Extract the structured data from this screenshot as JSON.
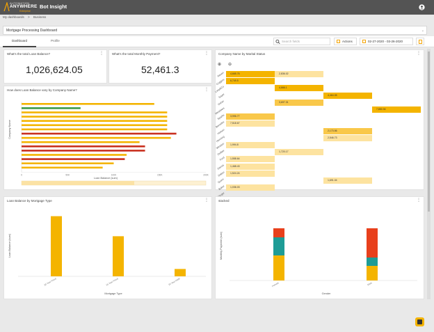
{
  "header": {
    "logo_line1": "AUTOMATION",
    "logo_line2": "ANYWHERE",
    "logo_line3": "Enterprise",
    "app_title": "Bot Insight"
  },
  "breadcrumb": [
    "My dashboards",
    ">",
    "Business"
  ],
  "dashboard_select": {
    "value": "Mortgage Processing Dashboard"
  },
  "tabs": [
    {
      "label": "Dashboard",
      "active": true
    },
    {
      "label": "Profile",
      "active": false
    }
  ],
  "toolbar": {
    "search_placeholder": "Search fields",
    "actions_label": "Actions",
    "date_range": "02-27-2020 - 03-26-2020"
  },
  "kpis": [
    {
      "title": "What's the total Loan Balance?",
      "value": "1,026,624.05"
    },
    {
      "title": "What's the total Monthly Payment?",
      "value": "52,461.3"
    }
  ],
  "heatmap": {
    "title": "Company Name by Marital Status",
    "rows": [
      "Nauen",
      "Coggins",
      "Lasy&Co",
      "Sayer",
      "Osher",
      "Meadows",
      "Sparks",
      "Benedict",
      "Hutson",
      "Henning",
      "Winston",
      "Outlaw",
      "Ford",
      "Garcia",
      "Dalton",
      "Quinn",
      "Baker",
      "Singer",
      "Moody",
      "Fox"
    ],
    "cells": [
      {
        "row": 0,
        "col": 0,
        "text": "4,665.76",
        "color": "#f4b400"
      },
      {
        "row": 0,
        "col": 1,
        "text": "2,836.02",
        "color": "#fde3a0"
      },
      {
        "row": 1,
        "col": 0,
        "text": "6,749.5",
        "color": "#f4b400"
      },
      {
        "row": 2,
        "col": 1,
        "text": "4,666.1",
        "color": "#f4b400"
      },
      {
        "row": 3,
        "col": 2,
        "text": "4,464.05",
        "color": "#f4b400"
      },
      {
        "row": 4,
        "col": 1,
        "text": "3,697.31",
        "color": "#f9c84a"
      },
      {
        "row": 5,
        "col": 3,
        "text": "7,850.94",
        "color": "#f4b400"
      },
      {
        "row": 6,
        "col": 0,
        "text": "3,996.77",
        "color": "#f9c84a"
      },
      {
        "row": 7,
        "col": 0,
        "text": "7,518.67",
        "color": "#fde3a0"
      },
      {
        "row": 8,
        "col": 2,
        "text": "2,173.56",
        "color": "#f9c84a"
      },
      {
        "row": 9,
        "col": 2,
        "text": "2,546.73",
        "color": "#fde3a0"
      },
      {
        "row": 10,
        "col": 0,
        "text": "1,994.8",
        "color": "#fde3a0"
      },
      {
        "row": 11,
        "col": 1,
        "text": "1,720.17",
        "color": "#fde3a0"
      },
      {
        "row": 12,
        "col": 0,
        "text": "1,558.64",
        "color": "#fde3a0"
      },
      {
        "row": 13,
        "col": 0,
        "text": "1,468.43",
        "color": "#fde3a0"
      },
      {
        "row": 14,
        "col": 0,
        "text": "1,524.24",
        "color": "#fde3a0"
      },
      {
        "row": 15,
        "col": 2,
        "text": "1,691.04",
        "color": "#fde3a0"
      },
      {
        "row": 16,
        "col": 0,
        "text": "1,036.03",
        "color": "#fde3a0"
      }
    ],
    "zoom_in": "⊕",
    "zoom_out": "⊖"
  },
  "hbar": {
    "title": "How does Loan Balance vary by Company Name?",
    "ylabel": "Company Name",
    "xlabel": "Loan Balance (sum)",
    "ticks": [
      "0",
      "50K",
      "100K",
      "150K",
      "200K"
    ],
    "bars": [
      {
        "w": 0.72,
        "c": "#f4b400"
      },
      {
        "w": 0.32,
        "c": "#3a9a48"
      },
      {
        "w": 0.79,
        "c": "#f4b400"
      },
      {
        "w": 0.79,
        "c": "#f4b400"
      },
      {
        "w": 0.79,
        "c": "#f4b400"
      },
      {
        "w": 0.79,
        "c": "#f4b400"
      },
      {
        "w": 0.79,
        "c": "#f4b400"
      },
      {
        "w": 0.84,
        "c": "#c9301e"
      },
      {
        "w": 0.81,
        "c": "#f4b400"
      },
      {
        "w": 0.64,
        "c": "#f4b400"
      },
      {
        "w": 0.67,
        "c": "#c9301e"
      },
      {
        "w": 0.67,
        "c": "#c9301e"
      },
      {
        "w": 0.57,
        "c": "#f4b400"
      },
      {
        "w": 0.56,
        "c": "#c9301e"
      },
      {
        "w": 0.5,
        "c": "#f4b400"
      },
      {
        "w": 0.44,
        "c": "#f4b400"
      }
    ]
  },
  "mortgage": {
    "title": "Loan Balance by Mortgage Type",
    "ylabel": "Loan Balance (sum)",
    "xlabel": "Mortgage Type",
    "categories": [
      "30 Year Fixed",
      "15 Year Fixed",
      "10 Year ARM"
    ],
    "values": [
      0.9,
      0.6,
      0.11
    ]
  },
  "stacked": {
    "title": "stacked",
    "ylabel": "Monthly Payment (sum)",
    "xlabel": "Gender",
    "categories": [
      "Female",
      "Male"
    ],
    "segments": [
      [
        {
          "v": 0.36,
          "c": "#f4b400"
        },
        {
          "v": 0.26,
          "c": "#1e9c96"
        },
        {
          "v": 0.13,
          "c": "#e8401c"
        }
      ],
      [
        {
          "v": 0.21,
          "c": "#f4b400"
        },
        {
          "v": 0.12,
          "c": "#1e9c96"
        },
        {
          "v": 0.42,
          "c": "#e8401c"
        }
      ]
    ]
  }
}
